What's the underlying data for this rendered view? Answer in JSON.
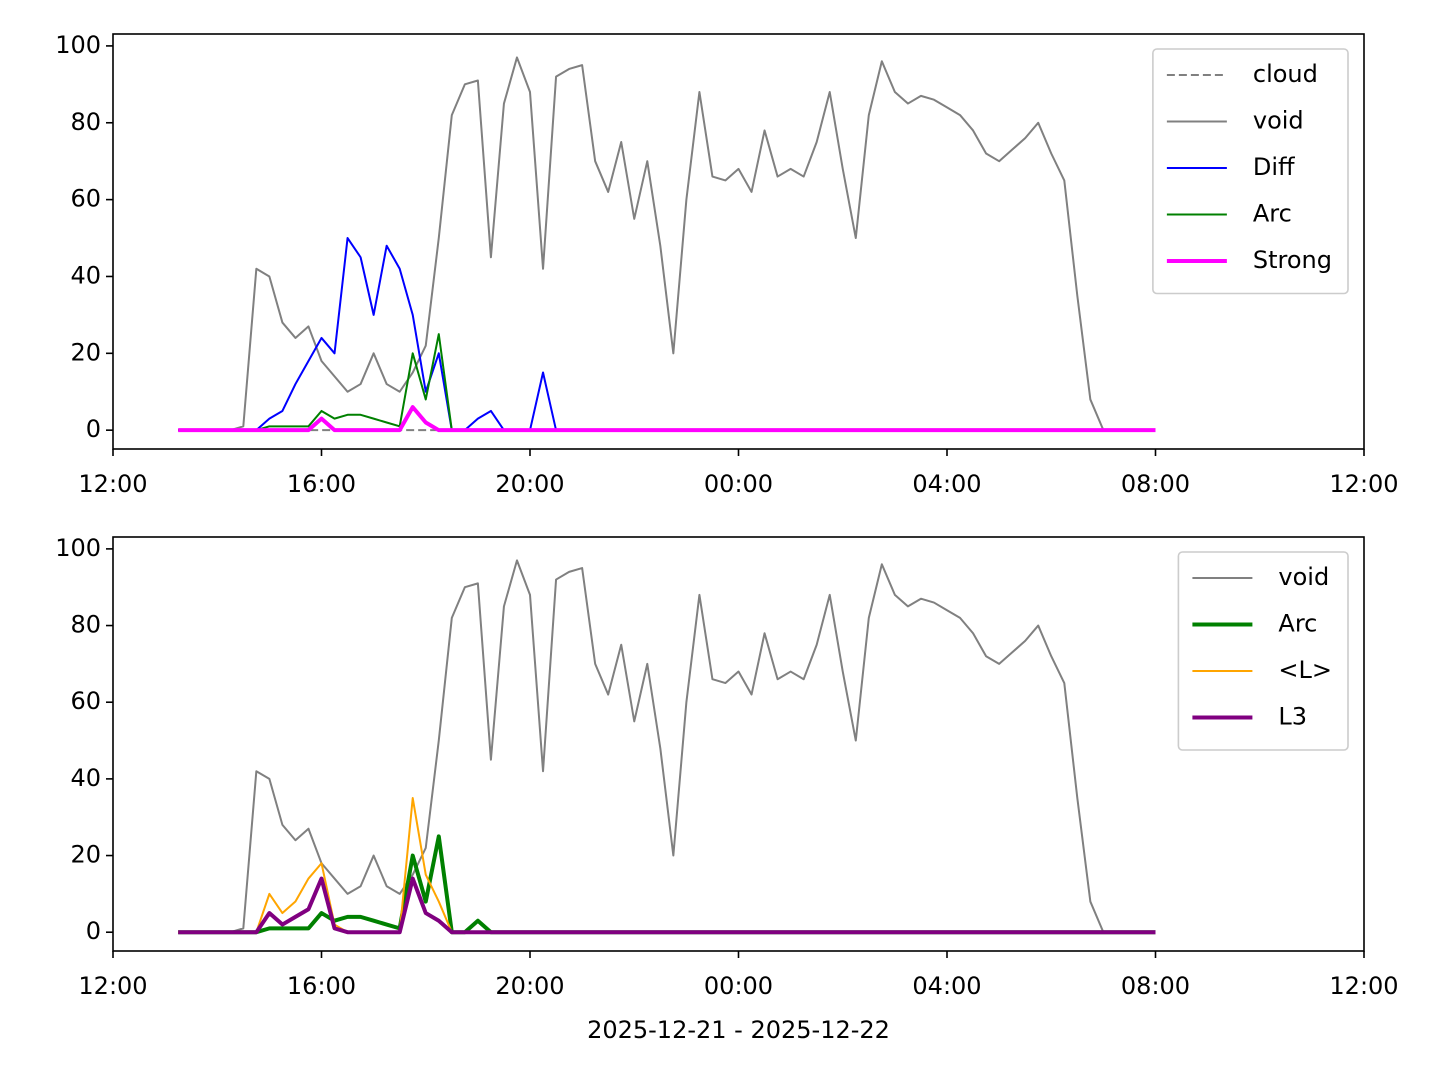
{
  "chart_data": [
    {
      "type": "line",
      "legend": "upper right",
      "x": [
        13.25,
        13.5,
        13.75,
        14,
        14.25,
        14.5,
        14.75,
        15,
        15.25,
        15.5,
        15.75,
        16,
        16.25,
        16.5,
        16.75,
        17,
        17.25,
        17.5,
        17.75,
        18,
        18.25,
        18.5,
        18.75,
        19,
        19.25,
        19.5,
        19.75,
        20,
        20.25,
        20.5,
        20.75,
        21,
        21.25,
        21.5,
        21.75,
        22,
        22.25,
        22.5,
        22.75,
        23,
        23.25,
        23.5,
        23.75,
        24,
        24.25,
        24.5,
        24.75,
        25,
        25.25,
        25.5,
        25.75,
        26,
        26.25,
        26.5,
        26.75,
        27,
        27.25,
        27.5,
        27.75,
        28,
        28.25,
        28.5,
        28.75,
        29,
        29.25,
        29.5,
        29.75,
        30,
        30.25,
        30.5,
        30.75,
        31,
        31.25,
        31.5,
        31.75,
        32
      ],
      "xlim": [
        12,
        36
      ],
      "xticks": [
        {
          "value": 12,
          "label": "12:00"
        },
        {
          "value": 16,
          "label": "16:00"
        },
        {
          "value": 20,
          "label": "20:00"
        },
        {
          "value": 24,
          "label": "00:00"
        },
        {
          "value": 28,
          "label": "04:00"
        },
        {
          "value": 32,
          "label": "08:00"
        },
        {
          "value": 36,
          "label": "12:00"
        }
      ],
      "ylim": [
        -4.9,
        103.1
      ],
      "yticks": [
        0,
        20,
        40,
        60,
        80,
        100
      ],
      "series": [
        {
          "name": "cloud",
          "color": "#808080",
          "linestyle": "dashed",
          "linewidth": 2,
          "values": [
            0,
            0,
            0,
            0,
            0,
            0,
            0,
            0,
            0,
            0,
            0,
            0,
            0,
            0,
            0,
            0,
            0,
            0,
            0,
            0,
            0,
            0,
            0,
            0,
            0,
            0,
            0,
            0,
            0,
            0,
            0,
            0,
            0,
            0,
            0,
            0,
            0,
            0,
            0,
            0,
            0,
            0,
            0,
            0,
            0,
            0,
            0,
            0,
            0,
            0,
            0,
            0,
            0,
            0,
            0,
            0,
            0,
            0,
            0,
            0,
            0,
            0,
            0,
            0,
            0,
            0,
            0,
            0,
            0,
            0,
            0,
            0,
            0,
            0,
            0,
            0
          ]
        },
        {
          "name": "void",
          "color": "#808080",
          "linestyle": "solid",
          "linewidth": 2,
          "values": [
            0,
            0,
            0,
            0,
            0,
            1,
            42,
            40,
            28,
            24,
            27,
            18,
            14,
            10,
            12,
            20,
            12,
            10,
            15,
            22,
            50,
            82,
            90,
            91,
            45,
            85,
            97,
            88,
            42,
            92,
            94,
            95,
            70,
            62,
            75,
            55,
            70,
            48,
            20,
            60,
            88,
            66,
            65,
            68,
            62,
            78,
            66,
            68,
            66,
            75,
            88,
            68,
            50,
            82,
            96,
            88,
            85,
            87,
            86,
            84,
            82,
            78,
            72,
            70,
            73,
            76,
            80,
            72,
            65,
            35,
            8,
            0,
            0,
            0,
            0,
            0
          ]
        },
        {
          "name": "Diff",
          "color": "#0000ff",
          "linestyle": "solid",
          "linewidth": 2,
          "values": [
            0,
            0,
            0,
            0,
            0,
            0,
            0,
            3,
            5,
            12,
            18,
            24,
            20,
            50,
            45,
            30,
            48,
            42,
            30,
            10,
            20,
            0,
            0,
            3,
            5,
            0,
            0,
            0,
            15,
            0,
            0,
            0,
            0,
            0,
            0,
            0,
            0,
            0,
            0,
            0,
            0,
            0,
            0,
            0,
            0,
            0,
            0,
            0,
            0,
            0,
            0,
            0,
            0,
            0,
            0,
            0,
            0,
            0,
            0,
            0,
            0,
            0,
            0,
            0,
            0,
            0,
            0,
            0,
            0,
            0,
            0,
            0,
            0,
            0,
            0,
            0
          ]
        },
        {
          "name": "Arc",
          "color": "#008000",
          "linestyle": "solid",
          "linewidth": 2,
          "values": [
            0,
            0,
            0,
            0,
            0,
            0,
            0,
            1,
            1,
            1,
            1,
            5,
            3,
            4,
            4,
            3,
            2,
            1,
            20,
            8,
            25,
            0,
            0,
            0,
            0,
            0,
            0,
            0,
            0,
            0,
            0,
            0,
            0,
            0,
            0,
            0,
            0,
            0,
            0,
            0,
            0,
            0,
            0,
            0,
            0,
            0,
            0,
            0,
            0,
            0,
            0,
            0,
            0,
            0,
            0,
            0,
            0,
            0,
            0,
            0,
            0,
            0,
            0,
            0,
            0,
            0,
            0,
            0,
            0,
            0,
            0,
            0,
            0,
            0,
            0,
            0
          ]
        },
        {
          "name": "Strong",
          "color": "#ff00ff",
          "linestyle": "solid",
          "linewidth": 4,
          "values": [
            0,
            0,
            0,
            0,
            0,
            0,
            0,
            0,
            0,
            0,
            0,
            3,
            0,
            0,
            0,
            0,
            0,
            0,
            6,
            2,
            0,
            0,
            0,
            0,
            0,
            0,
            0,
            0,
            0,
            0,
            0,
            0,
            0,
            0,
            0,
            0,
            0,
            0,
            0,
            0,
            0,
            0,
            0,
            0,
            0,
            0,
            0,
            0,
            0,
            0,
            0,
            0,
            0,
            0,
            0,
            0,
            0,
            0,
            0,
            0,
            0,
            0,
            0,
            0,
            0,
            0,
            0,
            0,
            0,
            0,
            0,
            0,
            0,
            0,
            0,
            0
          ]
        }
      ]
    },
    {
      "type": "line",
      "legend": "upper right",
      "xlabel": "2025-12-21 - 2025-12-22",
      "x": [
        13.25,
        13.5,
        13.75,
        14,
        14.25,
        14.5,
        14.75,
        15,
        15.25,
        15.5,
        15.75,
        16,
        16.25,
        16.5,
        16.75,
        17,
        17.25,
        17.5,
        17.75,
        18,
        18.25,
        18.5,
        18.75,
        19,
        19.25,
        19.5,
        19.75,
        20,
        20.25,
        20.5,
        20.75,
        21,
        21.25,
        21.5,
        21.75,
        22,
        22.25,
        22.5,
        22.75,
        23,
        23.25,
        23.5,
        23.75,
        24,
        24.25,
        24.5,
        24.75,
        25,
        25.25,
        25.5,
        25.75,
        26,
        26.25,
        26.5,
        26.75,
        27,
        27.25,
        27.5,
        27.75,
        28,
        28.25,
        28.5,
        28.75,
        29,
        29.25,
        29.5,
        29.75,
        30,
        30.25,
        30.5,
        30.75,
        31,
        31.25,
        31.5,
        31.75,
        32
      ],
      "xlim": [
        12,
        36
      ],
      "xticks": [
        {
          "value": 12,
          "label": "12:00"
        },
        {
          "value": 16,
          "label": "16:00"
        },
        {
          "value": 20,
          "label": "20:00"
        },
        {
          "value": 24,
          "label": "00:00"
        },
        {
          "value": 28,
          "label": "04:00"
        },
        {
          "value": 32,
          "label": "08:00"
        },
        {
          "value": 36,
          "label": "12:00"
        }
      ],
      "ylim": [
        -4.9,
        103.1
      ],
      "yticks": [
        0,
        20,
        40,
        60,
        80,
        100
      ],
      "series": [
        {
          "name": "void",
          "color": "#808080",
          "linestyle": "solid",
          "linewidth": 2,
          "values": [
            0,
            0,
            0,
            0,
            0,
            1,
            42,
            40,
            28,
            24,
            27,
            18,
            14,
            10,
            12,
            20,
            12,
            10,
            15,
            22,
            50,
            82,
            90,
            91,
            45,
            85,
            97,
            88,
            42,
            92,
            94,
            95,
            70,
            62,
            75,
            55,
            70,
            48,
            20,
            60,
            88,
            66,
            65,
            68,
            62,
            78,
            66,
            68,
            66,
            75,
            88,
            68,
            50,
            82,
            96,
            88,
            85,
            87,
            86,
            84,
            82,
            78,
            72,
            70,
            73,
            76,
            80,
            72,
            65,
            35,
            8,
            0,
            0,
            0,
            0,
            0
          ]
        },
        {
          "name": "Arc",
          "color": "#008000",
          "linestyle": "solid",
          "linewidth": 4,
          "values": [
            0,
            0,
            0,
            0,
            0,
            0,
            0,
            1,
            1,
            1,
            1,
            5,
            3,
            4,
            4,
            3,
            2,
            1,
            20,
            8,
            25,
            0,
            0,
            3,
            0,
            0,
            0,
            0,
            0,
            0,
            0,
            0,
            0,
            0,
            0,
            0,
            0,
            0,
            0,
            0,
            0,
            0,
            0,
            0,
            0,
            0,
            0,
            0,
            0,
            0,
            0,
            0,
            0,
            0,
            0,
            0,
            0,
            0,
            0,
            0,
            0,
            0,
            0,
            0,
            0,
            0,
            0,
            0,
            0,
            0,
            0,
            0,
            0,
            0,
            0,
            0
          ]
        },
        {
          "name": "<L>",
          "color": "#ffa500",
          "linestyle": "solid",
          "linewidth": 2,
          "values": [
            0,
            0,
            0,
            0,
            0,
            0,
            0,
            10,
            5,
            8,
            14,
            18,
            2,
            0,
            0,
            0,
            0,
            0,
            35,
            15,
            8,
            0,
            0,
            0,
            0,
            0,
            0,
            0,
            0,
            0,
            0,
            0,
            0,
            0,
            0,
            0,
            0,
            0,
            0,
            0,
            0,
            0,
            0,
            0,
            0,
            0,
            0,
            0,
            0,
            0,
            0,
            0,
            0,
            0,
            0,
            0,
            0,
            0,
            0,
            0,
            0,
            0,
            0,
            0,
            0,
            0,
            0,
            0,
            0,
            0,
            0,
            0,
            0,
            0,
            0,
            0
          ]
        },
        {
          "name": "L3",
          "color": "#800080",
          "linestyle": "solid",
          "linewidth": 4,
          "values": [
            0,
            0,
            0,
            0,
            0,
            0,
            0,
            5,
            2,
            4,
            6,
            14,
            1,
            0,
            0,
            0,
            0,
            0,
            14,
            5,
            3,
            0,
            0,
            0,
            0,
            0,
            0,
            0,
            0,
            0,
            0,
            0,
            0,
            0,
            0,
            0,
            0,
            0,
            0,
            0,
            0,
            0,
            0,
            0,
            0,
            0,
            0,
            0,
            0,
            0,
            0,
            0,
            0,
            0,
            0,
            0,
            0,
            0,
            0,
            0,
            0,
            0,
            0,
            0,
            0,
            0,
            0,
            0,
            0,
            0,
            0,
            0,
            0,
            0,
            0,
            0
          ]
        }
      ]
    }
  ]
}
